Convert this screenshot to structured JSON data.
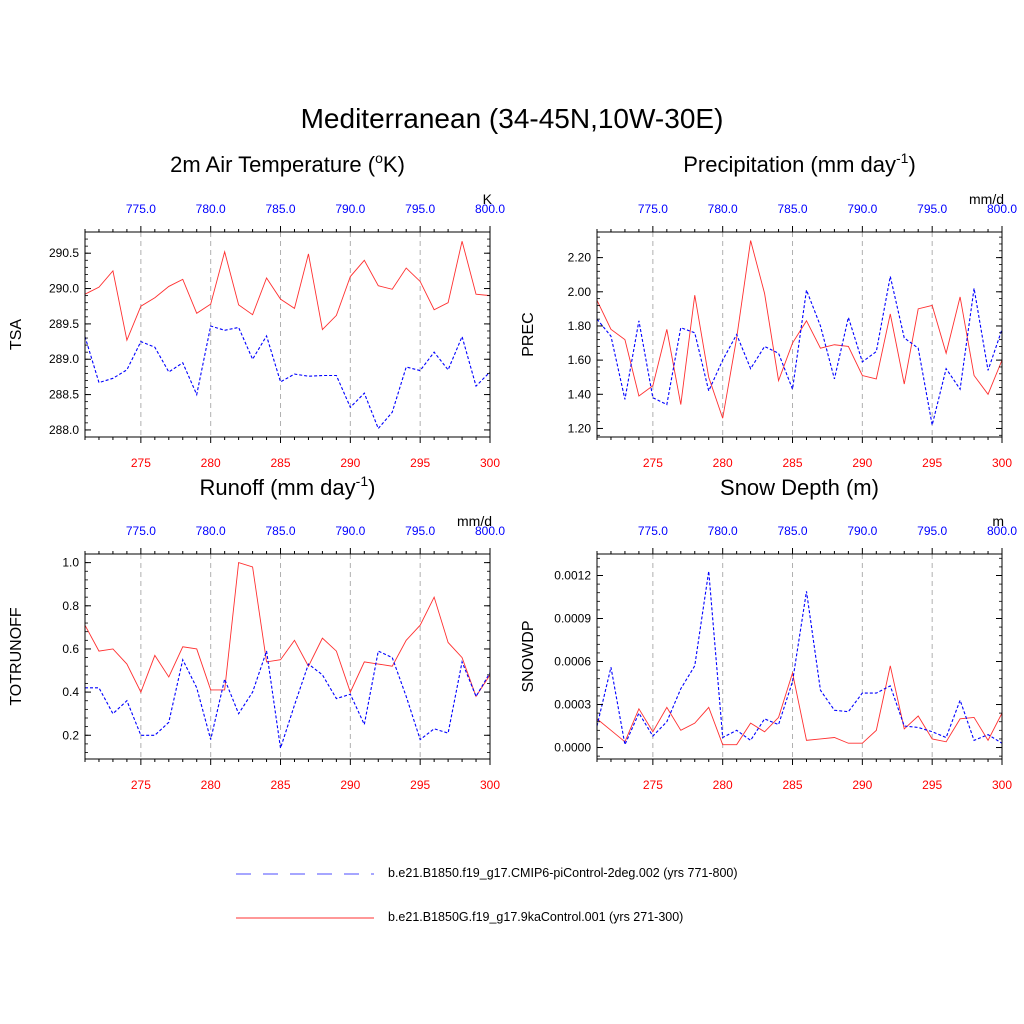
{
  "figure": {
    "title": "Mediterranean (34-45N,10W-30E)"
  },
  "colors": {
    "control": "#ff3030",
    "picontrol": "#0000ff",
    "top_axis": "#0000ff",
    "bottom_axis": "#ff0000",
    "grid": "#b0b0b0"
  },
  "legend": {
    "items": [
      {
        "series": "picontrol",
        "label": "b.e21.B1850.f19_g17.CMIP6-piControl-2deg.002 (yrs 771-800)",
        "style": "dashed"
      },
      {
        "series": "control",
        "label": "b.e21.B1850G.f19_g17.9kaControl.001 (yrs 271-300)",
        "style": "solid"
      }
    ]
  },
  "chart_data": [
    {
      "id": "tsa",
      "type": "line",
      "title_base": "2m Air Temperature (",
      "title_sup": "o",
      "title_tail": "K)",
      "ylabel": "TSA",
      "units": "K",
      "ylim": [
        287.9,
        290.8
      ],
      "yticks": [
        "288.0",
        "288.5",
        "289.0",
        "289.5",
        "290.0",
        "290.5"
      ],
      "x_bottom": {
        "range": [
          271,
          300
        ],
        "ticks": [
          "275",
          "280",
          "285",
          "290",
          "295",
          "300"
        ]
      },
      "x_top": {
        "range": [
          771,
          800
        ],
        "ticks": [
          "775.0",
          "780.0",
          "785.0",
          "790.0",
          "795.0",
          "800.0"
        ]
      },
      "series": [
        {
          "name": "b.e21.B1850G.f19_g17.9kaControl.001 (yrs 271-300)",
          "key": "control",
          "values": [
            289.92,
            290.02,
            290.25,
            289.27,
            289.75,
            289.87,
            290.03,
            290.13,
            289.65,
            289.78,
            290.52,
            289.77,
            289.63,
            290.15,
            289.85,
            289.72,
            290.49,
            289.42,
            289.62,
            290.17,
            290.4,
            290.04,
            289.99,
            290.29,
            290.1,
            289.7,
            289.8,
            290.67,
            289.92,
            289.9
          ]
        },
        {
          "name": "b.e21.B1850.f19_g17.CMIP6-piControl-2deg.002 (yrs 771-800)",
          "key": "picontrol",
          "values": [
            289.32,
            288.67,
            288.73,
            288.85,
            289.25,
            289.17,
            288.82,
            288.95,
            288.5,
            289.47,
            289.41,
            289.45,
            289.0,
            289.33,
            288.68,
            288.79,
            288.76,
            288.77,
            288.77,
            288.32,
            288.52,
            288.02,
            288.25,
            288.89,
            288.84,
            289.1,
            288.85,
            289.32,
            288.62,
            288.82
          ]
        }
      ]
    },
    {
      "id": "prec",
      "type": "line",
      "title_base": "Precipitation (mm day",
      "title_sup": "-1",
      "title_tail": ")",
      "ylabel": "PREC",
      "units": "mm/d",
      "ylim": [
        1.15,
        2.35
      ],
      "yticks": [
        "1.20",
        "1.40",
        "1.60",
        "1.80",
        "2.00",
        "2.20"
      ],
      "x_bottom": {
        "range": [
          271,
          300
        ],
        "ticks": [
          "275",
          "280",
          "285",
          "290",
          "295",
          "300"
        ]
      },
      "x_top": {
        "range": [
          771,
          800
        ],
        "ticks": [
          "775.0",
          "780.0",
          "785.0",
          "790.0",
          "795.0",
          "800.0"
        ]
      },
      "series": [
        {
          "name": "b.e21.B1850G.f19_g17.9kaControl.001 (yrs 271-300)",
          "key": "control",
          "values": [
            1.95,
            1.78,
            1.72,
            1.39,
            1.45,
            1.78,
            1.34,
            1.98,
            1.5,
            1.26,
            1.73,
            2.3,
            1.99,
            1.48,
            1.7,
            1.83,
            1.67,
            1.69,
            1.68,
            1.51,
            1.49,
            1.87,
            1.46,
            1.9,
            1.92,
            1.64,
            1.97,
            1.51,
            1.4,
            1.6
          ]
        },
        {
          "name": "b.e21.B1850.f19_g17.CMIP6-piControl-2deg.002 (yrs 771-800)",
          "key": "picontrol",
          "values": [
            1.84,
            1.74,
            1.37,
            1.83,
            1.38,
            1.34,
            1.79,
            1.76,
            1.42,
            1.6,
            1.75,
            1.55,
            1.68,
            1.64,
            1.43,
            2.01,
            1.8,
            1.49,
            1.85,
            1.59,
            1.65,
            2.09,
            1.73,
            1.67,
            1.22,
            1.55,
            1.43,
            2.02,
            1.54,
            1.78
          ]
        }
      ]
    },
    {
      "id": "runoff",
      "type": "line",
      "title_base": "Runoff (mm day",
      "title_sup": "-1",
      "title_tail": ")",
      "ylabel": "TOTRUNOFF",
      "units": "mm/d",
      "ylim": [
        0.09,
        1.04
      ],
      "yticks": [
        "0.2",
        "0.4",
        "0.6",
        "0.8",
        "1.0"
      ],
      "x_bottom": {
        "range": [
          271,
          300
        ],
        "ticks": [
          "275",
          "280",
          "285",
          "290",
          "295",
          "300"
        ]
      },
      "x_top": {
        "range": [
          771,
          800
        ],
        "ticks": [
          "775.0",
          "780.0",
          "785.0",
          "790.0",
          "795.0",
          "800.0"
        ]
      },
      "series": [
        {
          "name": "b.e21.B1850G.f19_g17.9kaControl.001 (yrs 271-300)",
          "key": "control",
          "values": [
            0.71,
            0.59,
            0.6,
            0.53,
            0.4,
            0.57,
            0.47,
            0.61,
            0.6,
            0.41,
            0.41,
            1.0,
            0.98,
            0.54,
            0.55,
            0.64,
            0.52,
            0.65,
            0.59,
            0.4,
            0.54,
            0.53,
            0.52,
            0.64,
            0.71,
            0.84,
            0.63,
            0.56,
            0.38,
            0.48
          ]
        },
        {
          "name": "b.e21.B1850.f19_g17.CMIP6-piControl-2deg.002 (yrs 771-800)",
          "key": "picontrol",
          "values": [
            0.42,
            0.42,
            0.3,
            0.36,
            0.2,
            0.2,
            0.26,
            0.55,
            0.42,
            0.18,
            0.46,
            0.3,
            0.4,
            0.59,
            0.14,
            0.34,
            0.53,
            0.48,
            0.37,
            0.39,
            0.25,
            0.59,
            0.56,
            0.38,
            0.18,
            0.23,
            0.21,
            0.54,
            0.38,
            0.49
          ]
        }
      ]
    },
    {
      "id": "snowdp",
      "type": "line",
      "title_base": "Snow Depth (m)",
      "title_sup": "",
      "title_tail": "",
      "ylabel": "SNOWDP",
      "units": "m",
      "ylim": [
        -8e-05,
        0.00135
      ],
      "yticks": [
        "0.0000",
        "0.0003",
        "0.0006",
        "0.0009",
        "0.0012"
      ],
      "ytick_values": [
        0.0,
        0.0003,
        0.0006,
        0.0009,
        0.0012
      ],
      "x_bottom": {
        "range": [
          271,
          300
        ],
        "ticks": [
          "275",
          "280",
          "285",
          "290",
          "295",
          "300"
        ]
      },
      "x_top": {
        "range": [
          771,
          800
        ],
        "ticks": [
          "775.0",
          "780.0",
          "785.0",
          "790.0",
          "795.0",
          "800.0"
        ]
      },
      "series": [
        {
          "name": "b.e21.B1850G.f19_g17.9kaControl.001 (yrs 271-300)",
          "key": "control",
          "values": [
            0.0002,
            0.00012,
            4e-05,
            0.00027,
            0.00011,
            0.00028,
            0.00012,
            0.00017,
            0.00028,
            2e-05,
            2e-05,
            0.00017,
            0.00011,
            0.00021,
            0.00052,
            5e-05,
            6e-05,
            7e-05,
            3e-05,
            3e-05,
            0.00012,
            0.00057,
            0.00013,
            0.00022,
            6e-05,
            4e-05,
            0.0002,
            0.00021,
            5e-05,
            0.00024
          ]
        },
        {
          "name": "b.e21.B1850.f19_g17.CMIP6-piControl-2deg.002 (yrs 771-800)",
          "key": "picontrol",
          "values": [
            0.00015,
            0.00056,
            2e-05,
            0.00024,
            8e-05,
            0.00018,
            0.00041,
            0.00057,
            0.00123,
            7e-05,
            0.00012,
            5e-05,
            0.0002,
            0.00016,
            0.00046,
            0.00109,
            0.0004,
            0.00026,
            0.00025,
            0.00038,
            0.00038,
            0.00043,
            0.00015,
            0.00014,
            0.00011,
            7e-05,
            0.00033,
            5e-05,
            9e-05,
            3e-05
          ]
        }
      ]
    }
  ]
}
